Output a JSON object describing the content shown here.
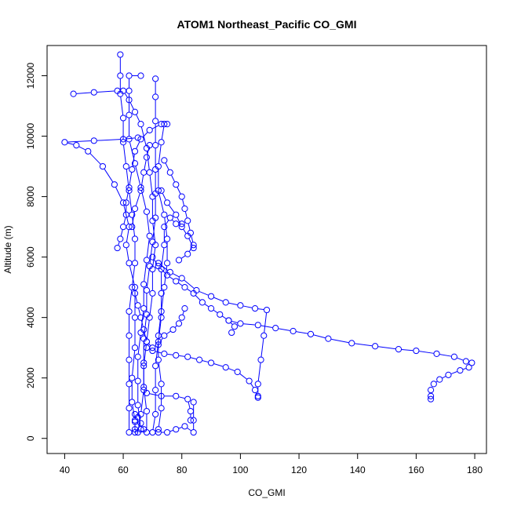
{
  "chart_data": {
    "type": "scatter",
    "title": "ATOM1 Northeast_Pacific CO_GMI",
    "xlabel": "CO_GMI",
    "ylabel": "Altitude (m)",
    "xlim": [
      34,
      184
    ],
    "ylim": [
      -500,
      13000
    ],
    "xticks": [
      40,
      60,
      80,
      100,
      120,
      140,
      160,
      180
    ],
    "yticks": [
      0,
      2000,
      4000,
      6000,
      8000,
      10000,
      12000
    ],
    "grid": false,
    "marker": "open-circle",
    "color": "#0000ff",
    "series": [
      {
        "points": [
          [
            64,
            200
          ],
          [
            64,
            600
          ],
          [
            63,
            1200
          ],
          [
            63,
            2000
          ],
          [
            64,
            3000
          ],
          [
            64,
            4000
          ],
          [
            64,
            5000
          ],
          [
            62,
            5800
          ],
          [
            61,
            6400
          ],
          [
            62,
            7000
          ],
          [
            60,
            7800
          ],
          [
            57,
            8400
          ],
          [
            53,
            9000
          ],
          [
            48,
            9500
          ],
          [
            44,
            9700
          ],
          [
            40,
            9800
          ],
          [
            50,
            9850
          ],
          [
            60,
            9900
          ],
          [
            65,
            9950
          ]
        ]
      },
      {
        "points": [
          [
            65,
            200
          ],
          [
            66,
            800
          ],
          [
            67,
            1600
          ],
          [
            67,
            2400
          ],
          [
            68,
            3200
          ],
          [
            69,
            4000
          ],
          [
            70,
            4800
          ],
          [
            70,
            5600
          ],
          [
            71,
            6400
          ],
          [
            70,
            7200
          ],
          [
            70,
            8000
          ],
          [
            69,
            8800
          ],
          [
            68,
            9600
          ],
          [
            66,
            10400
          ],
          [
            64,
            10800
          ],
          [
            62,
            11200
          ],
          [
            60,
            11500
          ],
          [
            58,
            11500
          ],
          [
            50,
            11450
          ],
          [
            43,
            11400
          ]
        ]
      },
      {
        "points": [
          [
            70,
            200
          ],
          [
            71,
            800
          ],
          [
            71,
            1600
          ],
          [
            71,
            2400
          ],
          [
            72,
            3200
          ],
          [
            73,
            4000
          ],
          [
            73,
            4800
          ],
          [
            73,
            5600
          ],
          [
            74,
            6400
          ],
          [
            74,
            7000
          ],
          [
            76,
            7300
          ],
          [
            78,
            7100
          ],
          [
            80,
            7100
          ]
        ]
      },
      {
        "points": [
          [
            72,
            300
          ],
          [
            73,
            1000
          ],
          [
            73,
            1800
          ],
          [
            72,
            2600
          ],
          [
            72,
            3400
          ],
          [
            73,
            4200
          ],
          [
            74,
            5000
          ],
          [
            75,
            5800
          ],
          [
            75,
            6600
          ],
          [
            74,
            7400
          ],
          [
            72,
            8200
          ],
          [
            72,
            9000
          ],
          [
            73,
            9800
          ],
          [
            74,
            10400
          ],
          [
            75,
            10400
          ]
        ]
      },
      {
        "points": [
          [
            68,
            200
          ],
          [
            68,
            900
          ],
          [
            67,
            1700
          ],
          [
            67,
            2500
          ],
          [
            67,
            3300
          ],
          [
            68,
            4100
          ],
          [
            68,
            4900
          ],
          [
            69,
            5700
          ],
          [
            70,
            6500
          ],
          [
            71,
            7300
          ],
          [
            71,
            8100
          ],
          [
            71,
            8900
          ],
          [
            71,
            9700
          ],
          [
            71,
            10500
          ],
          [
            71,
            11300
          ],
          [
            71,
            11900
          ]
        ]
      },
      {
        "points": [
          [
            66,
            300
          ],
          [
            65,
            1100
          ],
          [
            65,
            1900
          ],
          [
            65,
            2700
          ],
          [
            66,
            3500
          ],
          [
            67,
            4300
          ],
          [
            67,
            5100
          ],
          [
            68,
            5900
          ],
          [
            69,
            6700
          ],
          [
            68,
            7500
          ],
          [
            66,
            8300
          ],
          [
            64,
            9100
          ],
          [
            62,
            9900
          ],
          [
            62,
            10700
          ],
          [
            62,
            11500
          ],
          [
            62,
            12000
          ],
          [
            66,
            12000
          ]
        ]
      },
      {
        "points": [
          [
            62,
            200
          ],
          [
            62,
            1000
          ],
          [
            62,
            1800
          ],
          [
            62,
            2600
          ],
          [
            62,
            3400
          ],
          [
            62,
            4200
          ],
          [
            63,
            5000
          ],
          [
            64,
            5800
          ],
          [
            64,
            6600
          ],
          [
            63,
            7400
          ],
          [
            62,
            8200
          ],
          [
            61,
            9000
          ],
          [
            60,
            9800
          ],
          [
            60,
            10600
          ],
          [
            59,
            11400
          ],
          [
            59,
            12000
          ],
          [
            59,
            12700
          ]
        ]
      },
      {
        "points": [
          [
            72,
            200
          ],
          [
            75,
            200
          ],
          [
            78,
            300
          ],
          [
            81,
            400
          ],
          [
            84,
            200
          ],
          [
            84,
            600
          ],
          [
            84,
            1200
          ]
        ]
      },
      {
        "points": [
          [
            68,
            1500
          ],
          [
            73,
            1400
          ],
          [
            78,
            1400
          ],
          [
            82,
            1300
          ],
          [
            83,
            900
          ],
          [
            83,
            600
          ]
        ]
      },
      {
        "points": [
          [
            70,
            6000
          ],
          [
            72,
            5700
          ],
          [
            75,
            5400
          ],
          [
            78,
            5200
          ],
          [
            81,
            5000
          ],
          [
            84,
            4800
          ],
          [
            87,
            4500
          ],
          [
            90,
            4300
          ],
          [
            93,
            4100
          ],
          [
            96,
            3900
          ],
          [
            98,
            3700
          ],
          [
            97,
            3500
          ]
        ]
      },
      {
        "points": [
          [
            72,
            5800
          ],
          [
            76,
            5500
          ],
          [
            80,
            5300
          ],
          [
            85,
            4900
          ],
          [
            90,
            4700
          ],
          [
            95,
            4500
          ],
          [
            100,
            4400
          ],
          [
            105,
            4300
          ],
          [
            109,
            4250
          ],
          [
            108,
            3400
          ],
          [
            107,
            2600
          ],
          [
            106,
            1800
          ],
          [
            106,
            1400
          ]
        ]
      },
      {
        "points": [
          [
            68,
            3000
          ],
          [
            70,
            2900
          ],
          [
            74,
            2800
          ],
          [
            78,
            2750
          ],
          [
            82,
            2700
          ],
          [
            86,
            2600
          ],
          [
            90,
            2500
          ],
          [
            95,
            2350
          ],
          [
            99,
            2200
          ],
          [
            103,
            1900
          ],
          [
            105,
            1600
          ],
          [
            106,
            1350
          ]
        ]
      },
      {
        "points": [
          [
            96,
            3900
          ],
          [
            100,
            3800
          ],
          [
            106,
            3750
          ],
          [
            112,
            3650
          ],
          [
            118,
            3550
          ],
          [
            124,
            3450
          ],
          [
            130,
            3300
          ],
          [
            138,
            3150
          ],
          [
            146,
            3050
          ],
          [
            154,
            2950
          ],
          [
            160,
            2900
          ],
          [
            167,
            2800
          ],
          [
            173,
            2700
          ],
          [
            177,
            2550
          ],
          [
            179,
            2500
          ],
          [
            178,
            2350
          ],
          [
            175,
            2250
          ],
          [
            171,
            2100
          ],
          [
            168,
            1950
          ],
          [
            166,
            1800
          ],
          [
            165,
            1600
          ],
          [
            165,
            1400
          ],
          [
            165,
            1300
          ]
        ]
      },
      {
        "points": [
          [
            74,
            9200
          ],
          [
            76,
            8800
          ],
          [
            78,
            8400
          ],
          [
            80,
            8000
          ],
          [
            81,
            7600
          ],
          [
            82,
            7200
          ],
          [
            83,
            6800
          ],
          [
            84,
            6400
          ],
          [
            82,
            6100
          ],
          [
            79,
            5900
          ]
        ]
      },
      {
        "points": [
          [
            73,
            8200
          ],
          [
            75,
            7800
          ],
          [
            78,
            7400
          ],
          [
            80,
            7000
          ],
          [
            82,
            6700
          ],
          [
            84,
            6300
          ]
        ]
      },
      {
        "points": [
          [
            64,
            4800
          ],
          [
            65,
            4400
          ],
          [
            66,
            4000
          ],
          [
            67,
            3600
          ],
          [
            68,
            3200
          ],
          [
            70,
            3000
          ],
          [
            72,
            3100
          ],
          [
            74,
            3400
          ],
          [
            77,
            3600
          ],
          [
            79,
            3800
          ],
          [
            80,
            4000
          ],
          [
            81,
            4300
          ]
        ]
      },
      {
        "points": [
          [
            63,
            7000
          ],
          [
            64,
            7600
          ],
          [
            66,
            8200
          ],
          [
            67,
            8800
          ],
          [
            68,
            9300
          ],
          [
            69,
            9700
          ]
        ]
      },
      {
        "points": [
          [
            58,
            6300
          ],
          [
            59,
            6600
          ],
          [
            60,
            7000
          ],
          [
            61,
            7400
          ],
          [
            61,
            7800
          ],
          [
            62,
            8300
          ],
          [
            63,
            8900
          ],
          [
            64,
            9500
          ],
          [
            66,
            9900
          ],
          [
            69,
            10200
          ],
          [
            73,
            10400
          ]
        ]
      },
      {
        "points": [
          [
            64,
            300
          ],
          [
            64,
            550
          ],
          [
            64,
            800
          ],
          [
            65,
            700
          ],
          [
            66,
            500
          ],
          [
            67,
            300
          ]
        ]
      }
    ]
  }
}
